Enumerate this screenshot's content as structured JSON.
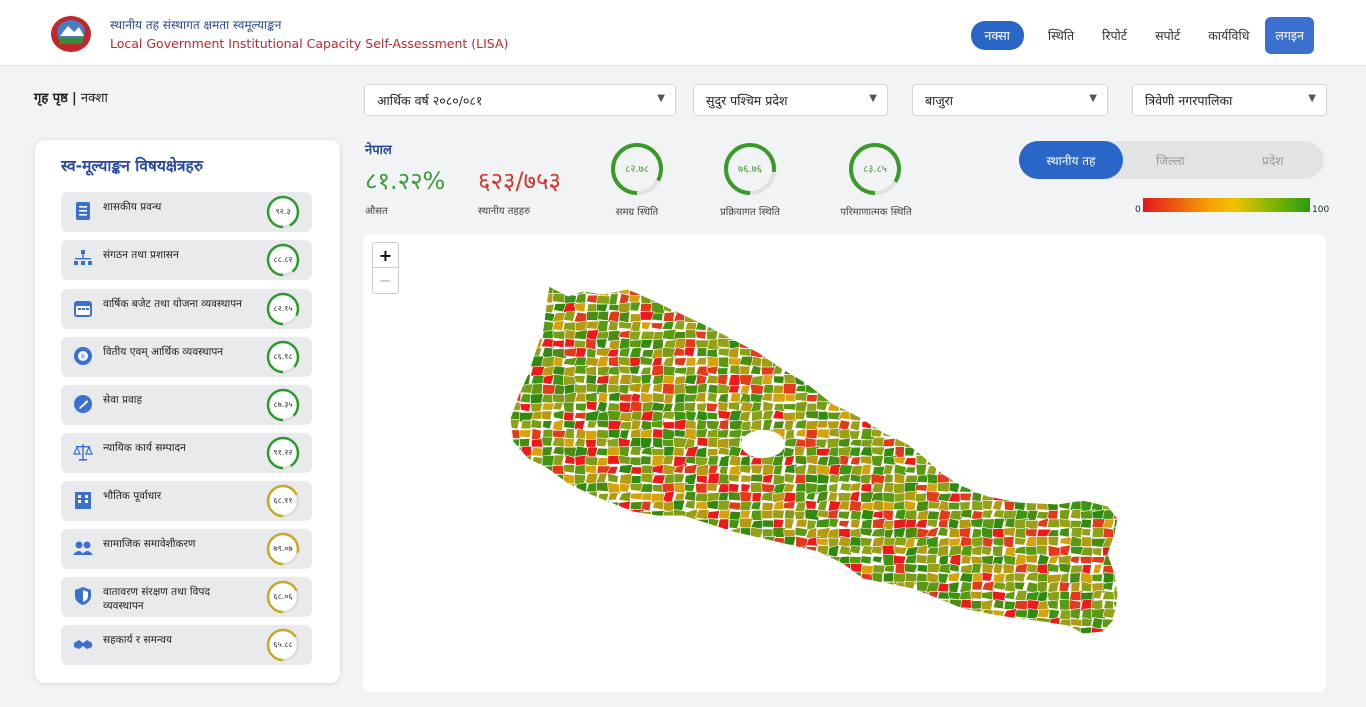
{
  "header": {
    "title_np": "स्थानीय तह संस्थागत क्षमता स्वमूल्याङ्कन",
    "title_en": "Local Government Institutional Capacity Self-Assessment (LISA)",
    "nav": [
      "नक्सा",
      "स्थिति",
      "रिपोर्ट",
      "सपोर्ट",
      "कार्यविधि"
    ],
    "login": "लगइन"
  },
  "breadcrumb": {
    "home": "गृह पृष्ठ",
    "sep": "|",
    "current": "नक्शा"
  },
  "filters": {
    "fiscal_year": "आर्थिक वर्ष २०८०/०८१",
    "province": "सुदुर पश्चिम प्रदेश",
    "district": "बाजुरा",
    "municipality": "त्रिवेणी नगरपालिका"
  },
  "panel": {
    "title": "स्व-मूल्याङ्कन विषयक्षेत्रहरु",
    "topics": [
      {
        "label": "शासकीय प्रवन्ध",
        "score": "९२.३",
        "value": 92.3,
        "icon": "document-icon"
      },
      {
        "label": "संगठन तथा प्रशासन",
        "score": "८८.८२",
        "value": 88.82,
        "icon": "org-chart-icon"
      },
      {
        "label": "वार्षिक बजेट तथा योजना व्यवस्थापन",
        "score": "८२.१५",
        "value": 82.15,
        "icon": "calendar-icon"
      },
      {
        "label": "वितीय एवम् आर्थिक व्यवस्थापन",
        "score": "८६.१८",
        "value": 86.18,
        "icon": "finance-gear-icon"
      },
      {
        "label": "सेवा प्रवाह",
        "score": "८७.३५",
        "value": 87.35,
        "icon": "wrench-icon"
      },
      {
        "label": "न्यायिक कार्य सम्पादन",
        "score": "९१.२२",
        "value": 91.22,
        "icon": "scales-icon"
      },
      {
        "label": "भौतिक पूर्वाधार",
        "score": "६८.११",
        "value": 68.11,
        "icon": "building-icon"
      },
      {
        "label": "सामाजिक समावेशीकरण",
        "score": "७९.०७",
        "value": 79.07,
        "icon": "people-icon"
      },
      {
        "label": "वातावरण संरक्षण तथा विपद व्यवस्थापन",
        "score": "६८.०६",
        "value": 68.06,
        "icon": "shield-icon"
      },
      {
        "label": "सहकार्य र समन्वय",
        "score": "६५.८८",
        "value": 65.88,
        "icon": "handshake-icon"
      }
    ]
  },
  "stats": {
    "country": "नेपाल",
    "average": "८१.२२%",
    "average_label": "औसत",
    "local_levels": "६२३/७५३",
    "local_levels_label": "स्थानीय तहहरु",
    "rings": [
      {
        "value": "८२.७८",
        "pct": 82.78,
        "label": "समग्र स्थिति"
      },
      {
        "value": "७६.७६",
        "pct": 76.76,
        "label": "प्रक्रियागत स्थिति"
      },
      {
        "value": "८३.८५",
        "pct": 83.85,
        "label": "परिमाणात्मक स्थिति"
      }
    ]
  },
  "toggle": [
    "स्थानीय तह",
    "जिल्ला",
    "प्रदेश"
  ],
  "legend": {
    "min": "0",
    "max": "100"
  },
  "zoom": {
    "in": "+",
    "out": "−"
  },
  "colors": {
    "primary": "#2a66c8",
    "good": "#2c9a14",
    "bad": "#e3171d",
    "mid": "#f2c100"
  }
}
